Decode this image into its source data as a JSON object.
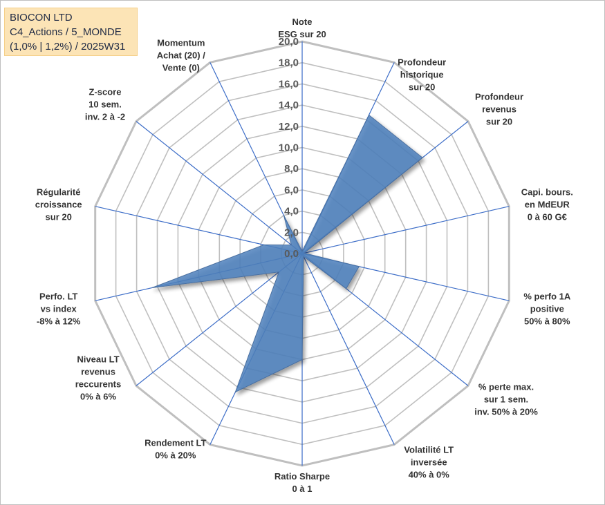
{
  "title_box": {
    "line1": "BIOCON LTD",
    "line2": "C4_Actions / 5_MONDE",
    "line3": "(1,0% | 1,2%) / 2025W31"
  },
  "chart_data": {
    "type": "radar",
    "title": "",
    "r_min": 0,
    "r_max": 20,
    "r_step": 2,
    "tick_labels": [
      "0,0",
      "2,0",
      "4,0",
      "6,0",
      "8,0",
      "10,0",
      "12,0",
      "14,0",
      "16,0",
      "18,0",
      "20,0"
    ],
    "axes": [
      [
        "Note",
        "ESG sur 20"
      ],
      [
        "Profondeur",
        "historique",
        "sur 20"
      ],
      [
        "Profondeur",
        "revenus",
        "sur 20"
      ],
      [
        "Capi. bours.",
        "en MdEUR",
        "0 à 60 G€"
      ],
      [
        "% perfo 1A",
        "positive",
        "50% à 80%"
      ],
      [
        "% perte max.",
        "sur 1 sem.",
        "inv. 50% à 20%"
      ],
      [
        "Volatilité LT",
        "inversée",
        "40% à 0%"
      ],
      [
        "Ratio Sharpe",
        "0 à 1"
      ],
      [
        "Rendement LT",
        "0% à 20%"
      ],
      [
        "Niveau LT",
        "revenus",
        "reccurents",
        "0% à 6%"
      ],
      [
        "Perfo. LT",
        "vs index",
        "-8% à 12%"
      ],
      [
        "Régularité",
        "croissance",
        "sur 20"
      ],
      [
        "Z-score",
        "10 sem.",
        "inv. 2 à -2"
      ],
      [
        "Momentum",
        "Achat (20) /",
        "Vente (0)"
      ]
    ],
    "series": [
      {
        "values": [
          0.2,
          14.5,
          14.5,
          0.2,
          5.5,
          5.3,
          0.3,
          10.0,
          14.5,
          2.8,
          14.5,
          3.7,
          1.3,
          4.0
        ]
      }
    ],
    "colors": {
      "fill": "#4f81bd",
      "edge": "#4a6fa0",
      "grid": "#bfbfbf",
      "spoke": "#3b6cc7"
    },
    "grid": true,
    "legend": "none"
  }
}
